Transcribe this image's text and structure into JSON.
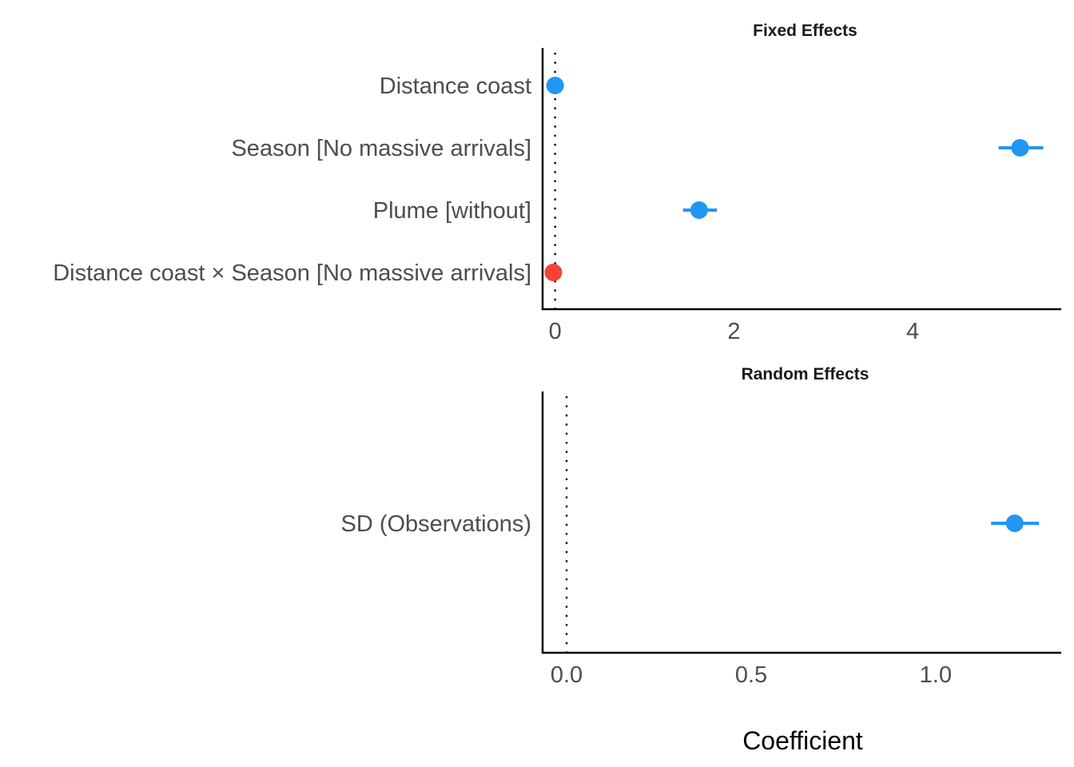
{
  "chart_data": [
    {
      "type": "scatter",
      "subtype": "coefficient-plot",
      "title": "Fixed Effects",
      "xlabel": "",
      "ylabel": "",
      "xlim": [
        -0.14,
        5.66
      ],
      "xticks": [
        0,
        2,
        4
      ],
      "xtick_labels": [
        "0",
        "2",
        "4"
      ],
      "reference_line": 0,
      "grid": false,
      "terms": [
        {
          "label": "Distance coast",
          "estimate": 0.0,
          "ci_low": -0.02,
          "ci_high": 0.02,
          "color": "#2196F3"
        },
        {
          "label": "Season [No massive arrivals]",
          "estimate": 5.2,
          "ci_low": 4.96,
          "ci_high": 5.46,
          "color": "#2196F3"
        },
        {
          "label": "Plume [without]",
          "estimate": 1.61,
          "ci_low": 1.43,
          "ci_high": 1.81,
          "color": "#2196F3"
        },
        {
          "label": "Distance coast × Season [No massive arrivals]",
          "estimate": -0.02,
          "ci_low": -0.04,
          "ci_high": 0.0,
          "color": "#F44336"
        }
      ]
    },
    {
      "type": "scatter",
      "subtype": "coefficient-plot",
      "title": "Random Effects",
      "xlabel": "Coefficient",
      "ylabel": "",
      "xlim": [
        -0.065,
        1.34
      ],
      "xticks": [
        0,
        0.5,
        1.0
      ],
      "xtick_labels": [
        "0.0",
        "0.5",
        "1.0"
      ],
      "reference_line": 0,
      "grid": false,
      "terms": [
        {
          "label": "SD (Observations)",
          "estimate": 1.214,
          "ci_low": 1.15,
          "ci_high": 1.28,
          "color": "#2196F3"
        }
      ]
    }
  ]
}
